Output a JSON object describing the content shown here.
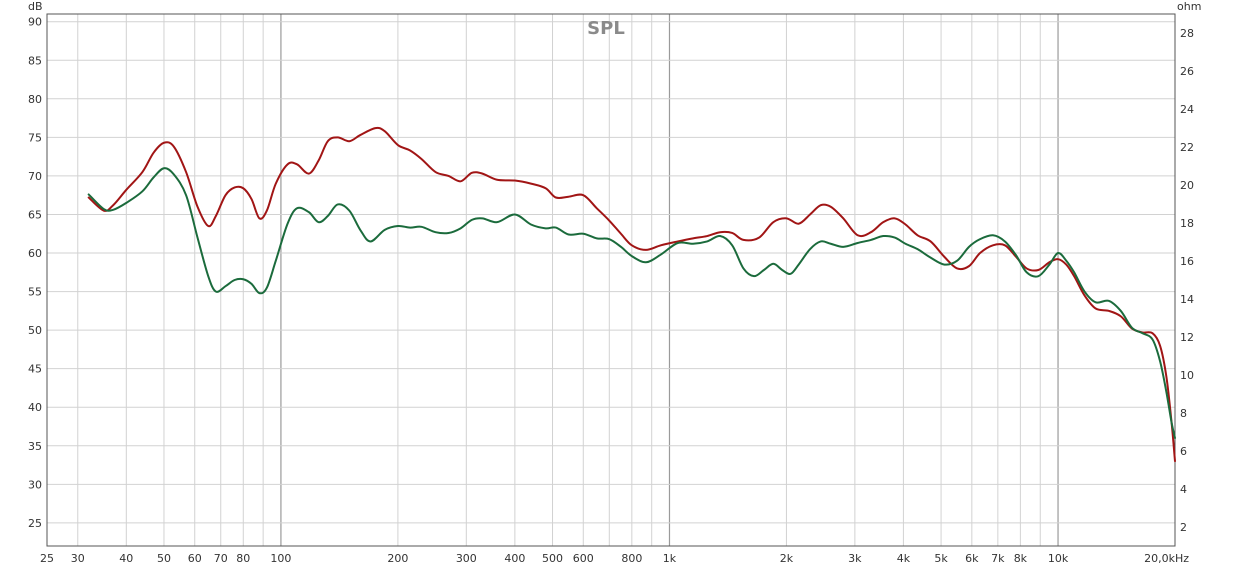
{
  "chart_data": {
    "type": "line",
    "title": "SPL",
    "x_scale": "log",
    "xlim": [
      25,
      20000
    ],
    "y_left_unit": "dB",
    "y_right_unit": "ohm",
    "ylim_left": [
      22,
      91
    ],
    "ylim_right": [
      1,
      29
    ],
    "grid": true,
    "x_ticks": [
      {
        "value": 25,
        "label": "25"
      },
      {
        "value": 30,
        "label": "30"
      },
      {
        "value": 40,
        "label": "40"
      },
      {
        "value": 50,
        "label": "50"
      },
      {
        "value": 60,
        "label": "60"
      },
      {
        "value": 70,
        "label": "70"
      },
      {
        "value": 80,
        "label": "80"
      },
      {
        "value": 100,
        "label": "100"
      },
      {
        "value": 200,
        "label": "200"
      },
      {
        "value": 300,
        "label": "300"
      },
      {
        "value": 400,
        "label": "400"
      },
      {
        "value": 500,
        "label": "500"
      },
      {
        "value": 600,
        "label": "600"
      },
      {
        "value": 800,
        "label": "800"
      },
      {
        "value": 1000,
        "label": "1k"
      },
      {
        "value": 2000,
        "label": "2k"
      },
      {
        "value": 3000,
        "label": "3k"
      },
      {
        "value": 4000,
        "label": "4k"
      },
      {
        "value": 5000,
        "label": "5k"
      },
      {
        "value": 6000,
        "label": "6k"
      },
      {
        "value": 7000,
        "label": "7k"
      },
      {
        "value": 8000,
        "label": "8k"
      },
      {
        "value": 10000,
        "label": "10k"
      },
      {
        "value": 20000,
        "label": "20,0kHz"
      }
    ],
    "y_left_ticks": [
      {
        "value": 25,
        "label": "25"
      },
      {
        "value": 30,
        "label": "30"
      },
      {
        "value": 35,
        "label": "35"
      },
      {
        "value": 40,
        "label": "40"
      },
      {
        "value": 45,
        "label": "45"
      },
      {
        "value": 50,
        "label": "50"
      },
      {
        "value": 55,
        "label": "55"
      },
      {
        "value": 60,
        "label": "60"
      },
      {
        "value": 65,
        "label": "65"
      },
      {
        "value": 70,
        "label": "70"
      },
      {
        "value": 75,
        "label": "75"
      },
      {
        "value": 80,
        "label": "80"
      },
      {
        "value": 85,
        "label": "85"
      },
      {
        "value": 90,
        "label": "90"
      }
    ],
    "y_right_ticks": [
      {
        "value": 2,
        "label": "2"
      },
      {
        "value": 4,
        "label": "4"
      },
      {
        "value": 6,
        "label": "6"
      },
      {
        "value": 8,
        "label": "8"
      },
      {
        "value": 10,
        "label": "10"
      },
      {
        "value": 12,
        "label": "12"
      },
      {
        "value": 14,
        "label": "14"
      },
      {
        "value": 16,
        "label": "16"
      },
      {
        "value": 18,
        "label": "18"
      },
      {
        "value": 20,
        "label": "20"
      },
      {
        "value": 22,
        "label": "22"
      },
      {
        "value": 24,
        "label": "24"
      },
      {
        "value": 26,
        "label": "26"
      },
      {
        "value": 28,
        "label": "28"
      }
    ],
    "series": [
      {
        "color": "#a11515",
        "points": [
          [
            32,
            67.2
          ],
          [
            35,
            65.5
          ],
          [
            37,
            66.2
          ],
          [
            40,
            68.2
          ],
          [
            44,
            70.5
          ],
          [
            47,
            73.0
          ],
          [
            50,
            74.3
          ],
          [
            53,
            73.8
          ],
          [
            57,
            70.5
          ],
          [
            61,
            66.0
          ],
          [
            65,
            63.5
          ],
          [
            68,
            64.8
          ],
          [
            72,
            67.5
          ],
          [
            76,
            68.5
          ],
          [
            80,
            68.4
          ],
          [
            84,
            67.0
          ],
          [
            88,
            64.5
          ],
          [
            92,
            65.5
          ],
          [
            97,
            69.0
          ],
          [
            104,
            71.5
          ],
          [
            110,
            71.5
          ],
          [
            118,
            70.3
          ],
          [
            125,
            72.0
          ],
          [
            132,
            74.5
          ],
          [
            140,
            75.0
          ],
          [
            150,
            74.5
          ],
          [
            160,
            75.3
          ],
          [
            175,
            76.2
          ],
          [
            185,
            75.8
          ],
          [
            200,
            74.0
          ],
          [
            215,
            73.3
          ],
          [
            230,
            72.2
          ],
          [
            250,
            70.5
          ],
          [
            270,
            70.0
          ],
          [
            290,
            69.3
          ],
          [
            310,
            70.4
          ],
          [
            330,
            70.3
          ],
          [
            360,
            69.5
          ],
          [
            400,
            69.4
          ],
          [
            440,
            69.0
          ],
          [
            480,
            68.4
          ],
          [
            510,
            67.2
          ],
          [
            550,
            67.3
          ],
          [
            600,
            67.5
          ],
          [
            650,
            65.8
          ],
          [
            700,
            64.2
          ],
          [
            750,
            62.5
          ],
          [
            800,
            61.0
          ],
          [
            870,
            60.4
          ],
          [
            950,
            61.0
          ],
          [
            1050,
            61.5
          ],
          [
            1150,
            61.9
          ],
          [
            1250,
            62.2
          ],
          [
            1350,
            62.7
          ],
          [
            1450,
            62.6
          ],
          [
            1550,
            61.7
          ],
          [
            1700,
            62.0
          ],
          [
            1850,
            64.0
          ],
          [
            2000,
            64.5
          ],
          [
            2150,
            63.8
          ],
          [
            2300,
            65.0
          ],
          [
            2450,
            66.2
          ],
          [
            2600,
            66.0
          ],
          [
            2800,
            64.5
          ],
          [
            3050,
            62.3
          ],
          [
            3300,
            62.7
          ],
          [
            3550,
            64.0
          ],
          [
            3800,
            64.5
          ],
          [
            4050,
            63.7
          ],
          [
            4350,
            62.3
          ],
          [
            4700,
            61.5
          ],
          [
            5100,
            59.5
          ],
          [
            5500,
            58.0
          ],
          [
            5900,
            58.3
          ],
          [
            6300,
            60.0
          ],
          [
            6800,
            61.0
          ],
          [
            7300,
            61.0
          ],
          [
            7800,
            59.5
          ],
          [
            8300,
            58.0
          ],
          [
            8900,
            57.8
          ],
          [
            9500,
            58.8
          ],
          [
            10000,
            59.2
          ],
          [
            10500,
            58.5
          ],
          [
            11000,
            57.0
          ],
          [
            11700,
            54.5
          ],
          [
            12500,
            52.8
          ],
          [
            13500,
            52.5
          ],
          [
            14500,
            51.8
          ],
          [
            15500,
            50.2
          ],
          [
            16500,
            49.7
          ],
          [
            17500,
            49.6
          ],
          [
            18300,
            48.0
          ],
          [
            19000,
            44.0
          ],
          [
            19600,
            38.0
          ],
          [
            20000,
            33.0
          ]
        ]
      },
      {
        "color": "#1b6b3c",
        "points": [
          [
            32,
            67.6
          ],
          [
            35,
            65.7
          ],
          [
            37,
            65.6
          ],
          [
            40,
            66.5
          ],
          [
            44,
            68.0
          ],
          [
            47,
            69.8
          ],
          [
            50,
            71.0
          ],
          [
            53,
            70.2
          ],
          [
            57,
            67.5
          ],
          [
            61,
            62.0
          ],
          [
            65,
            57.0
          ],
          [
            68,
            55.0
          ],
          [
            72,
            55.7
          ],
          [
            76,
            56.5
          ],
          [
            80,
            56.6
          ],
          [
            84,
            56.0
          ],
          [
            88,
            54.8
          ],
          [
            92,
            55.5
          ],
          [
            97,
            59.0
          ],
          [
            104,
            63.8
          ],
          [
            110,
            65.8
          ],
          [
            118,
            65.3
          ],
          [
            125,
            64.0
          ],
          [
            132,
            64.8
          ],
          [
            140,
            66.3
          ],
          [
            150,
            65.5
          ],
          [
            160,
            63.0
          ],
          [
            170,
            61.5
          ],
          [
            185,
            63.0
          ],
          [
            200,
            63.5
          ],
          [
            215,
            63.3
          ],
          [
            230,
            63.4
          ],
          [
            250,
            62.7
          ],
          [
            270,
            62.6
          ],
          [
            290,
            63.2
          ],
          [
            310,
            64.3
          ],
          [
            330,
            64.5
          ],
          [
            360,
            64.0
          ],
          [
            400,
            65.0
          ],
          [
            440,
            63.7
          ],
          [
            480,
            63.2
          ],
          [
            510,
            63.3
          ],
          [
            550,
            62.4
          ],
          [
            600,
            62.5
          ],
          [
            650,
            61.9
          ],
          [
            700,
            61.8
          ],
          [
            750,
            60.8
          ],
          [
            800,
            59.6
          ],
          [
            870,
            58.8
          ],
          [
            950,
            59.8
          ],
          [
            1050,
            61.3
          ],
          [
            1150,
            61.2
          ],
          [
            1250,
            61.5
          ],
          [
            1350,
            62.2
          ],
          [
            1450,
            61.0
          ],
          [
            1550,
            58.0
          ],
          [
            1650,
            57.0
          ],
          [
            1750,
            57.8
          ],
          [
            1850,
            58.6
          ],
          [
            1950,
            57.8
          ],
          [
            2050,
            57.3
          ],
          [
            2150,
            58.5
          ],
          [
            2300,
            60.5
          ],
          [
            2450,
            61.5
          ],
          [
            2600,
            61.2
          ],
          [
            2800,
            60.8
          ],
          [
            3050,
            61.3
          ],
          [
            3300,
            61.7
          ],
          [
            3550,
            62.2
          ],
          [
            3800,
            62.0
          ],
          [
            4050,
            61.2
          ],
          [
            4350,
            60.5
          ],
          [
            4700,
            59.4
          ],
          [
            5100,
            58.5
          ],
          [
            5500,
            59.0
          ],
          [
            5900,
            60.8
          ],
          [
            6300,
            61.8
          ],
          [
            6800,
            62.3
          ],
          [
            7300,
            61.5
          ],
          [
            7800,
            59.7
          ],
          [
            8300,
            57.5
          ],
          [
            8900,
            57.0
          ],
          [
            9500,
            58.5
          ],
          [
            10000,
            60.0
          ],
          [
            10500,
            59.0
          ],
          [
            11000,
            57.5
          ],
          [
            11700,
            55.0
          ],
          [
            12500,
            53.6
          ],
          [
            13500,
            53.8
          ],
          [
            14500,
            52.5
          ],
          [
            15500,
            50.3
          ],
          [
            16500,
            49.6
          ],
          [
            17500,
            48.8
          ],
          [
            18300,
            46.0
          ],
          [
            19000,
            42.0
          ],
          [
            19600,
            38.0
          ],
          [
            20000,
            36.0
          ]
        ]
      }
    ]
  }
}
